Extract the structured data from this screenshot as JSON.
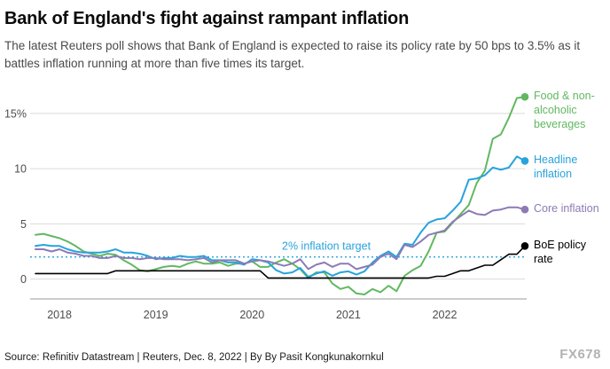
{
  "header": {
    "title": "Bank of England's fight against rampant inflation",
    "subtitle": "The latest Reuters poll shows that Bank of England is expected to raise its policy rate by 50 bps to 3.5% as it battles inflation running at more than five times its target."
  },
  "footer": {
    "source": "Source: Refinitiv Datastream | Reuters, Dec. 8, 2022 | By By Pasit Kongkunakornkul",
    "watermark": "FX678"
  },
  "chart_data": {
    "type": "line",
    "title": "Bank of England's fight against rampant inflation",
    "x_unit": "month",
    "x_start": "Oct 2017",
    "x_end": "Nov 2022",
    "ylim": [
      -1.8,
      17.0
    ],
    "x_ticks": [
      {
        "month": 3,
        "label": "2018"
      },
      {
        "month": 15,
        "label": "2019"
      },
      {
        "month": 27,
        "label": "2020"
      },
      {
        "month": 39,
        "label": "2021"
      },
      {
        "month": 51,
        "label": "2022"
      }
    ],
    "y_ticks": [
      {
        "value": 15,
        "label": "15%"
      },
      {
        "value": 10,
        "label": "10"
      },
      {
        "value": 5,
        "label": "5"
      },
      {
        "value": 0,
        "label": "0"
      }
    ],
    "target": {
      "value": 2,
      "label": "2% inflation target",
      "color": "#29a3dc"
    },
    "grid_color": "#d9d9d9",
    "axis_color": "#999999",
    "series": [
      {
        "name": "Food & non-alcoholic beverages",
        "color": "#61b861",
        "line_width": 2,
        "values": [
          4.0,
          4.1,
          3.9,
          3.7,
          3.4,
          3.0,
          2.5,
          2.3,
          2.1,
          2.3,
          2.2,
          1.7,
          1.3,
          0.8,
          0.7,
          0.9,
          1.1,
          1.2,
          1.1,
          1.4,
          1.6,
          1.4,
          1.4,
          1.5,
          1.2,
          1.4,
          1.4,
          1.6,
          1.1,
          1.1,
          1.5,
          1.8,
          1.4,
          0.9,
          0.1,
          0.6,
          0.6,
          -0.4,
          -0.9,
          -0.7,
          -1.3,
          -1.4,
          -0.9,
          -1.2,
          -0.6,
          -1.1,
          0.3,
          0.8,
          1.2,
          2.5,
          4.2,
          4.3,
          5.1,
          5.9,
          6.7,
          8.7,
          9.8,
          12.7,
          13.1,
          14.6,
          16.4,
          16.5
        ]
      },
      {
        "name": "Headline inflation",
        "color": "#29a3dc",
        "line_width": 2,
        "values": [
          3.0,
          3.1,
          3.0,
          3.0,
          2.7,
          2.5,
          2.4,
          2.4,
          2.4,
          2.5,
          2.7,
          2.4,
          2.4,
          2.3,
          2.1,
          1.8,
          1.9,
          1.9,
          2.1,
          2.0,
          2.0,
          2.1,
          1.7,
          1.7,
          1.5,
          1.5,
          1.3,
          1.8,
          1.7,
          1.5,
          0.8,
          0.5,
          0.6,
          1.0,
          0.2,
          0.5,
          0.7,
          0.3,
          0.6,
          0.7,
          0.4,
          0.7,
          1.5,
          2.1,
          2.5,
          2.0,
          3.2,
          3.1,
          4.2,
          5.1,
          5.4,
          5.5,
          6.2,
          7.0,
          9.0,
          9.1,
          9.4,
          10.1,
          9.9,
          10.1,
          11.1,
          10.7
        ]
      },
      {
        "name": "Core inflation",
        "color": "#8c7bb5",
        "line_width": 2,
        "values": [
          2.7,
          2.7,
          2.5,
          2.7,
          2.4,
          2.3,
          2.1,
          2.1,
          1.9,
          1.9,
          2.1,
          1.9,
          1.9,
          1.8,
          1.9,
          1.9,
          1.8,
          1.8,
          1.8,
          1.7,
          1.8,
          1.9,
          1.5,
          1.7,
          1.7,
          1.7,
          1.4,
          1.6,
          1.7,
          1.6,
          1.4,
          1.2,
          1.4,
          1.8,
          0.9,
          1.3,
          1.5,
          1.1,
          1.4,
          1.4,
          0.9,
          1.1,
          1.3,
          2.0,
          2.3,
          1.8,
          3.1,
          2.9,
          3.4,
          4.0,
          4.2,
          4.4,
          5.2,
          5.7,
          6.2,
          5.9,
          5.8,
          6.2,
          6.3,
          6.5,
          6.5,
          6.3
        ]
      },
      {
        "name": "BoE policy rate",
        "color": "#000000",
        "line_width": 1.6,
        "values": [
          0.5,
          0.5,
          0.5,
          0.5,
          0.5,
          0.5,
          0.5,
          0.5,
          0.5,
          0.5,
          0.75,
          0.75,
          0.75,
          0.75,
          0.75,
          0.75,
          0.75,
          0.75,
          0.75,
          0.75,
          0.75,
          0.75,
          0.75,
          0.75,
          0.75,
          0.75,
          0.75,
          0.75,
          0.75,
          0.1,
          0.1,
          0.1,
          0.1,
          0.1,
          0.1,
          0.1,
          0.1,
          0.1,
          0.1,
          0.1,
          0.1,
          0.1,
          0.1,
          0.1,
          0.1,
          0.1,
          0.1,
          0.1,
          0.1,
          0.1,
          0.25,
          0.25,
          0.5,
          0.75,
          0.75,
          1.0,
          1.25,
          1.25,
          1.75,
          2.25,
          2.25,
          3.0
        ]
      }
    ]
  }
}
